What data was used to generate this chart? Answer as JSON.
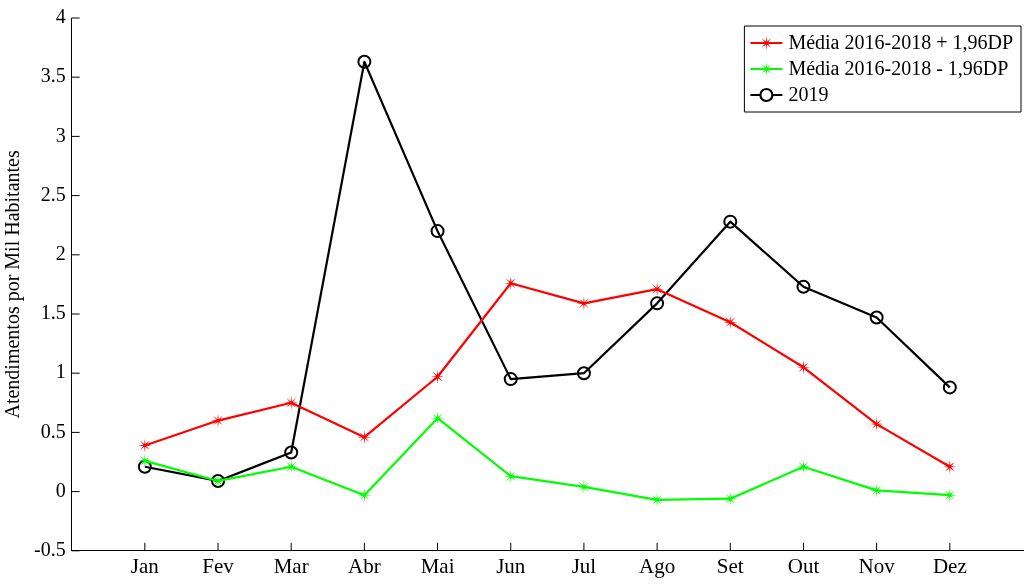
{
  "chart_data": {
    "type": "line",
    "ylabel": "Atendimentos por Mil Habitantes",
    "categories": [
      "Jan",
      "Fev",
      "Mar",
      "Abr",
      "Mai",
      "Jun",
      "Jul",
      "Ago",
      "Set",
      "Out",
      "Nov",
      "Dez"
    ],
    "series": [
      {
        "name": "Média 2016-2018 + 1,96DP",
        "color": "#ff0000",
        "marker": "star",
        "values": [
          0.39,
          0.6,
          0.75,
          0.46,
          0.97,
          1.76,
          1.59,
          1.71,
          1.43,
          1.05,
          0.57,
          0.21
        ]
      },
      {
        "name": "Média 2016-2018 - 1,96DP",
        "color": "#00ff00",
        "marker": "star",
        "values": [
          0.26,
          0.09,
          0.21,
          -0.03,
          0.62,
          0.13,
          0.04,
          -0.07,
          -0.06,
          0.21,
          0.01,
          -0.03
        ]
      },
      {
        "name": "2019",
        "color": "#000000",
        "marker": "circle",
        "values": [
          0.21,
          0.09,
          0.33,
          3.63,
          2.2,
          0.95,
          1.0,
          1.59,
          2.28,
          1.73,
          1.47,
          0.88
        ]
      }
    ],
    "ylim": [
      -0.5,
      4
    ],
    "yticks": [
      -0.5,
      0,
      0.5,
      1,
      1.5,
      2,
      2.5,
      3,
      3.5,
      4
    ],
    "grid": false,
    "legend": "top right"
  }
}
